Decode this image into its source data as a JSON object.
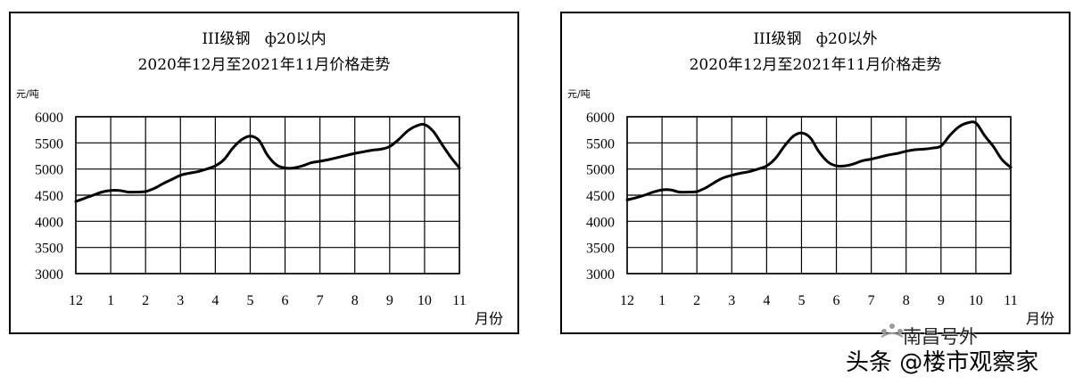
{
  "chart_data": [
    {
      "type": "line",
      "title": "III级钢   ф20以内",
      "subtitle": "2020年12月至2021年11月价格走势",
      "ylabel": "元/吨",
      "xlabel": "月份",
      "categories": [
        "12",
        "1",
        "2",
        "3",
        "4",
        "5",
        "6",
        "7",
        "8",
        "9",
        "10",
        "11"
      ],
      "ylim": [
        3000,
        6000
      ],
      "yticks": [
        3000,
        3500,
        4000,
        4500,
        5000,
        5500,
        6000
      ],
      "grid": true,
      "x": [
        0,
        0.25,
        0.5,
        0.75,
        1,
        1.25,
        1.5,
        1.75,
        2,
        2.25,
        2.5,
        2.75,
        3,
        3.25,
        3.5,
        3.75,
        4,
        4.25,
        4.5,
        4.75,
        5,
        5.25,
        5.5,
        5.75,
        6,
        6.25,
        6.5,
        6.75,
        7,
        7.25,
        7.5,
        7.75,
        8,
        8.25,
        8.5,
        8.75,
        9,
        9.25,
        9.5,
        9.75,
        10,
        10.25,
        10.5,
        10.75,
        11
      ],
      "series": [
        {
          "values": [
            4380,
            4440,
            4500,
            4560,
            4590,
            4590,
            4560,
            4560,
            4570,
            4630,
            4720,
            4800,
            4880,
            4920,
            4950,
            5000,
            5060,
            5180,
            5400,
            5560,
            5630,
            5550,
            5260,
            5080,
            5020,
            5020,
            5060,
            5120,
            5150,
            5180,
            5220,
            5260,
            5300,
            5330,
            5360,
            5380,
            5430,
            5560,
            5720,
            5820,
            5850,
            5720,
            5470,
            5230,
            5020
          ]
        }
      ]
    },
    {
      "type": "line",
      "title": "III级钢   ф20以外",
      "subtitle": "2020年12月至2021年11月价格走势",
      "ylabel": "元/吨",
      "xlabel": "月份",
      "categories": [
        "12",
        "1",
        "2",
        "3",
        "4",
        "5",
        "6",
        "7",
        "8",
        "9",
        "10",
        "11"
      ],
      "ylim": [
        3000,
        6000
      ],
      "yticks": [
        3000,
        3500,
        4000,
        4500,
        5000,
        5500,
        6000
      ],
      "grid": true,
      "x": [
        0,
        0.25,
        0.5,
        0.75,
        1,
        1.25,
        1.5,
        1.75,
        2,
        2.25,
        2.5,
        2.75,
        3,
        3.25,
        3.5,
        3.75,
        4,
        4.25,
        4.5,
        4.75,
        5,
        5.25,
        5.5,
        5.75,
        6,
        6.25,
        6.5,
        6.75,
        7,
        7.25,
        7.5,
        7.75,
        8,
        8.25,
        8.5,
        8.75,
        9,
        9.25,
        9.5,
        9.75,
        10,
        10.25,
        10.5,
        10.75,
        11
      ],
      "series": [
        {
          "values": [
            4410,
            4450,
            4500,
            4560,
            4600,
            4600,
            4560,
            4560,
            4570,
            4640,
            4740,
            4830,
            4880,
            4920,
            4950,
            5000,
            5060,
            5200,
            5430,
            5620,
            5690,
            5600,
            5330,
            5140,
            5060,
            5060,
            5100,
            5160,
            5190,
            5230,
            5270,
            5300,
            5340,
            5370,
            5380,
            5400,
            5440,
            5640,
            5800,
            5880,
            5880,
            5640,
            5430,
            5180,
            5030
          ]
        }
      ]
    }
  ],
  "watermark": {
    "small_text": "南昌号外",
    "main_text": "头条 @楼市观察家"
  }
}
